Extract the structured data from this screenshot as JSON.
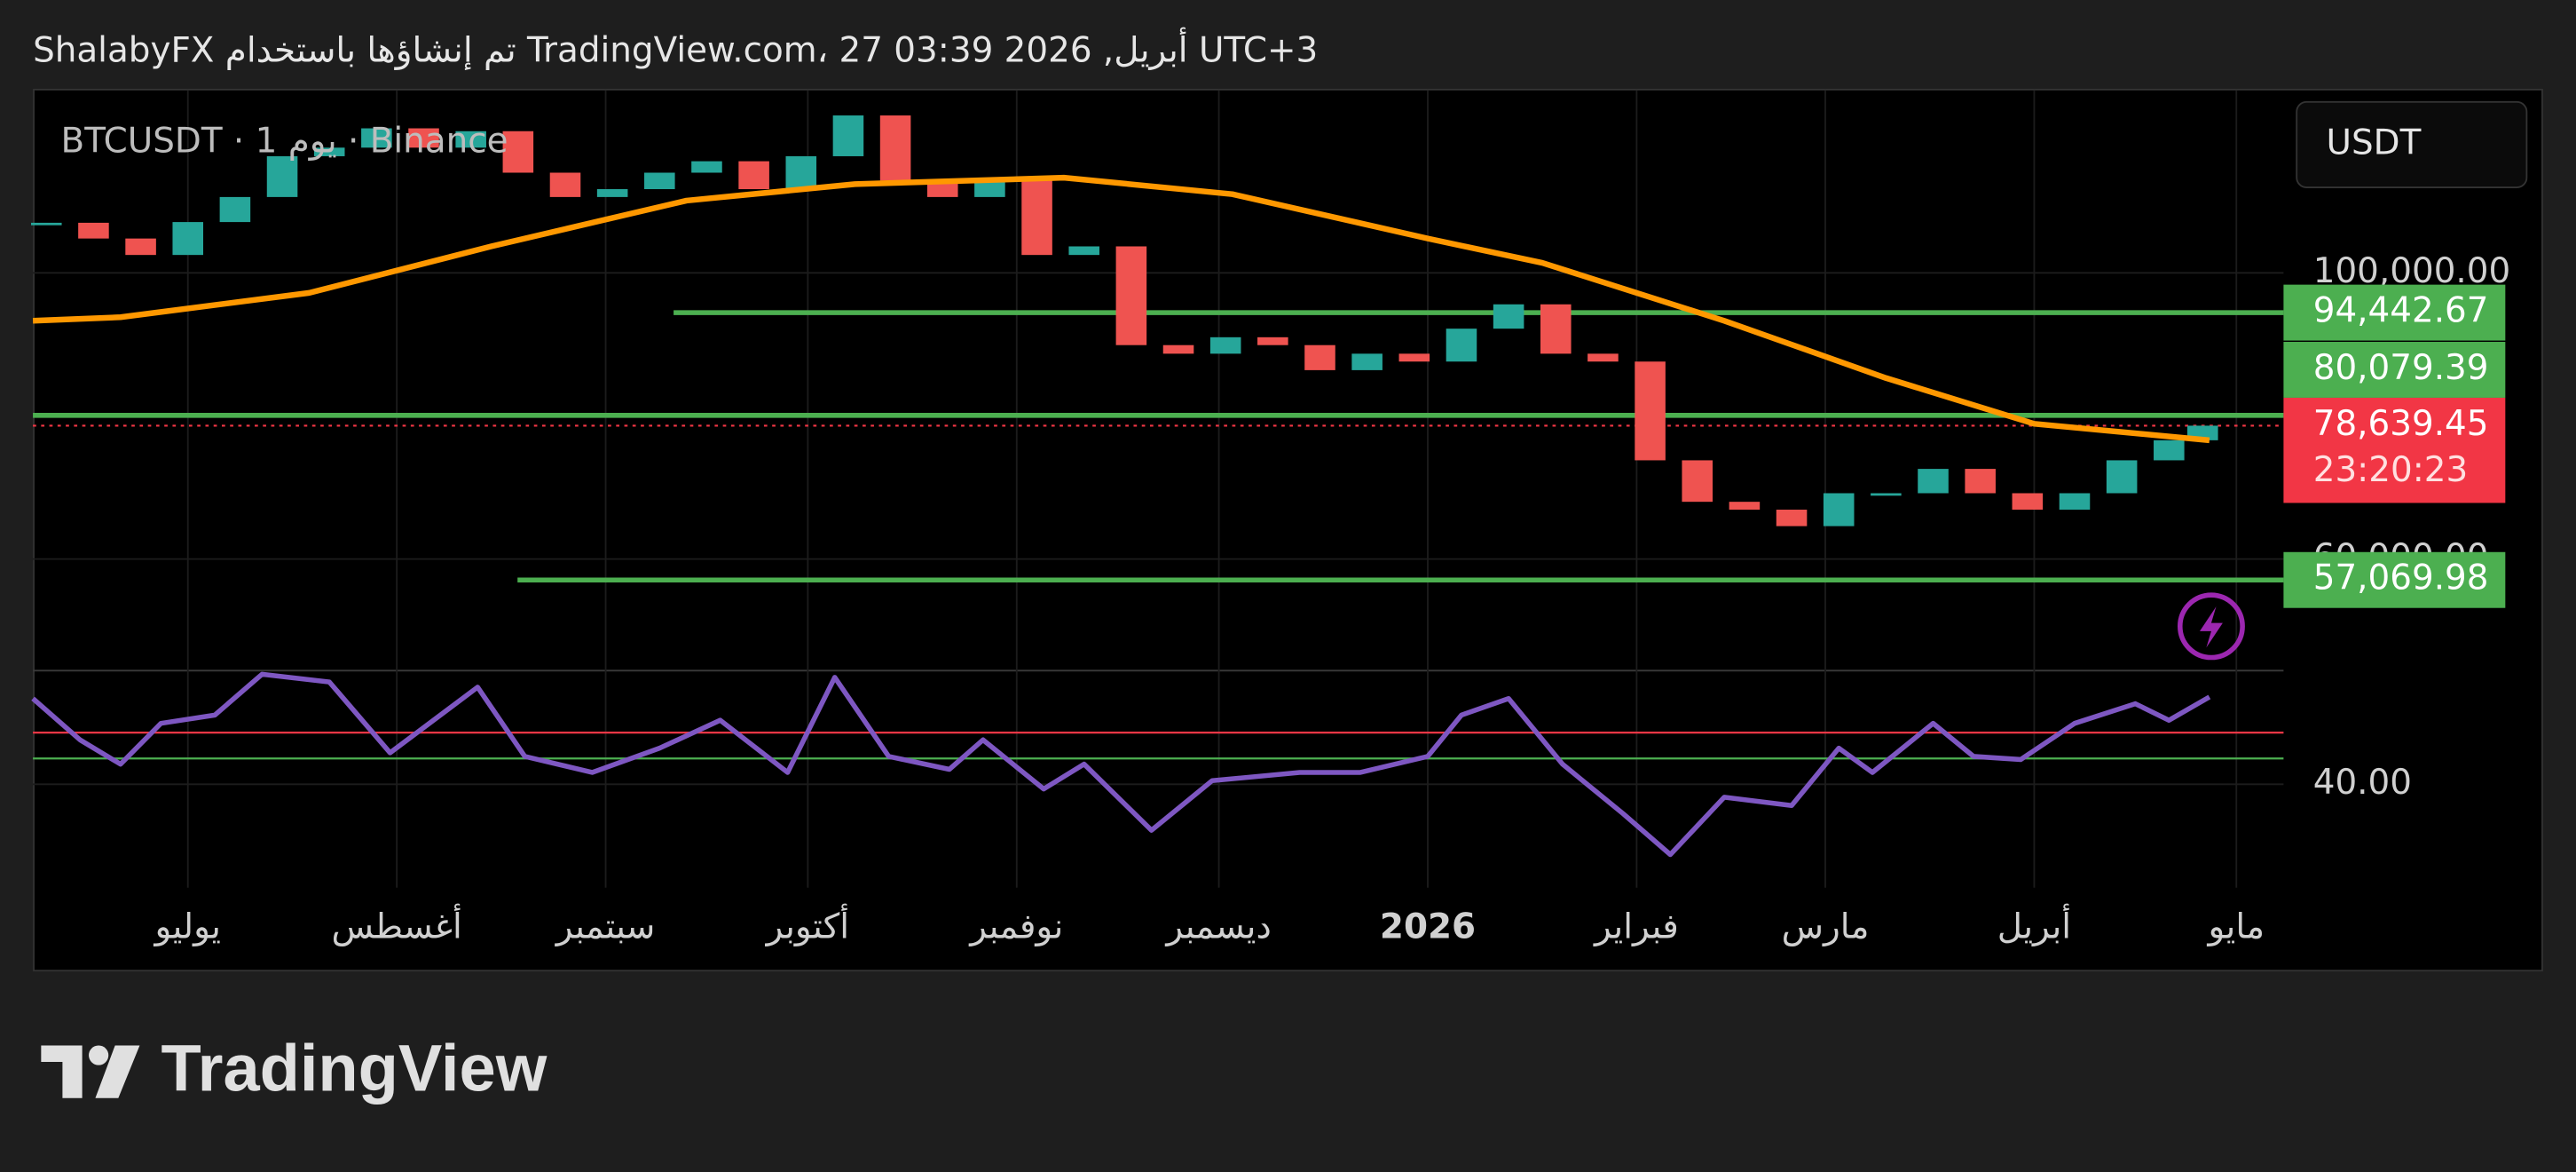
{
  "header": {
    "title": "ShalabyFX تم إنشاؤها باستخدام TradingView.com، 27 أبريل, 2026 03:39 UTC+3"
  },
  "footer": {
    "logo_text": "TradingView"
  },
  "chart_data": {
    "type": "candlestick",
    "currency": "USDT",
    "up_color": "#26a69a",
    "down_color": "#ef5350",
    "xlim": [
      -23,
      311
    ],
    "xticks": [
      {
        "value": 0,
        "label": "يوليو"
      },
      {
        "value": 31,
        "label": "أغسطس"
      },
      {
        "value": 62,
        "label": "سبتمبر"
      },
      {
        "value": 92,
        "label": "أكتوبر"
      },
      {
        "value": 123,
        "label": "نوفمبر"
      },
      {
        "value": 153,
        "label": "ديسمبر"
      },
      {
        "value": 184,
        "label": "2026"
      },
      {
        "value": 215,
        "label": "فبراير"
      },
      {
        "value": 243,
        "label": "مارس"
      },
      {
        "value": 274,
        "label": "أبريل"
      },
      {
        "value": 304,
        "label": "مايو"
      }
    ],
    "ylim": [
      44400,
      125500
    ],
    "yticks": [
      {
        "value": 100000,
        "label": "100,000.00"
      },
      {
        "value": 60000,
        "label": "60,000.00"
      }
    ],
    "grid": true,
    "series": [
      {
        "name": "BTCUSDT · 1 يوم · Binance",
        "x": [
          -21,
          -14,
          -7,
          0,
          7,
          14,
          21,
          28,
          35,
          42,
          49,
          56,
          63,
          70,
          77,
          84,
          91,
          98,
          105,
          112,
          119,
          126,
          133,
          140,
          147,
          154,
          161,
          168,
          175,
          182,
          189,
          196,
          203,
          210,
          217,
          224,
          231,
          238,
          245,
          252,
          259,
          266,
          273,
          280,
          287,
          294,
          299
        ],
        "values": [
          107000,
          104800,
          102500,
          107100,
          110600,
          116300,
          117500,
          120200,
          117500,
          119800,
          114000,
          110600,
          111700,
          114000,
          115600,
          111700,
          116300,
          122000,
          112900,
          110600,
          112900,
          102500,
          103700,
          89900,
          88700,
          91000,
          89900,
          86400,
          88700,
          87600,
          92200,
          95600,
          88700,
          87600,
          73800,
          68000,
          66900,
          64600,
          69200,
          69200,
          72600,
          69200,
          66900,
          69200,
          73800,
          76600,
          78639.45
        ]
      }
    ],
    "moving_average": {
      "color": "#ff9800",
      "x": [
        -23,
        -10,
        18,
        45,
        74,
        99,
        130,
        155,
        184,
        201,
        228,
        252,
        274,
        300
      ],
      "values": [
        93300,
        93800,
        97200,
        103700,
        110100,
        112400,
        113300,
        111000,
        104800,
        101400,
        93300,
        85300,
        78900,
        76600
      ]
    },
    "levels": [
      {
        "value": 94442.67,
        "label": "94,442.67",
        "color": "#4caf50"
      },
      {
        "value": 80079.39,
        "label": "80,079.39",
        "color": "#4caf50"
      },
      {
        "value": 57069.98,
        "label": "57,069.98",
        "color": "#4caf50"
      }
    ],
    "last_price": {
      "value": 78639.45,
      "label": "78,639.45",
      "countdown": "23:20:23",
      "color": "#f23645"
    },
    "rsi": {
      "color": "#7e57c2",
      "ylim": [
        20,
        62
      ],
      "yticks": [
        {
          "value": 40,
          "label": "40.00"
        }
      ],
      "levels": [
        {
          "value": 50,
          "color": "#f23645"
        },
        {
          "value": 45,
          "color": "#4caf50"
        }
      ],
      "x": [
        -23,
        -16,
        -10,
        -4,
        4,
        11,
        21,
        30,
        43,
        50,
        60,
        70,
        79,
        89,
        96,
        104,
        113,
        118,
        127,
        133,
        143,
        152,
        165,
        174,
        184,
        189,
        196,
        204,
        213,
        220,
        228,
        238,
        245,
        250,
        259,
        265,
        272,
        280,
        289,
        294,
        300
      ],
      "values": [
        56.6,
        48.6,
        43.9,
        51.8,
        53.4,
        61.3,
        59.8,
        46.1,
        58.8,
        45.4,
        42.3,
        47,
        52.4,
        42.3,
        60.7,
        45.4,
        42.9,
        48.6,
        39.1,
        43.9,
        31.1,
        40.7,
        42.3,
        42.3,
        45.4,
        53.4,
        56.6,
        43.9,
        34.3,
        26.4,
        37.5,
        35.9,
        47,
        42.3,
        51.8,
        45.4,
        44.8,
        51.8,
        55.6,
        52.4,
        56.9
      ]
    }
  }
}
